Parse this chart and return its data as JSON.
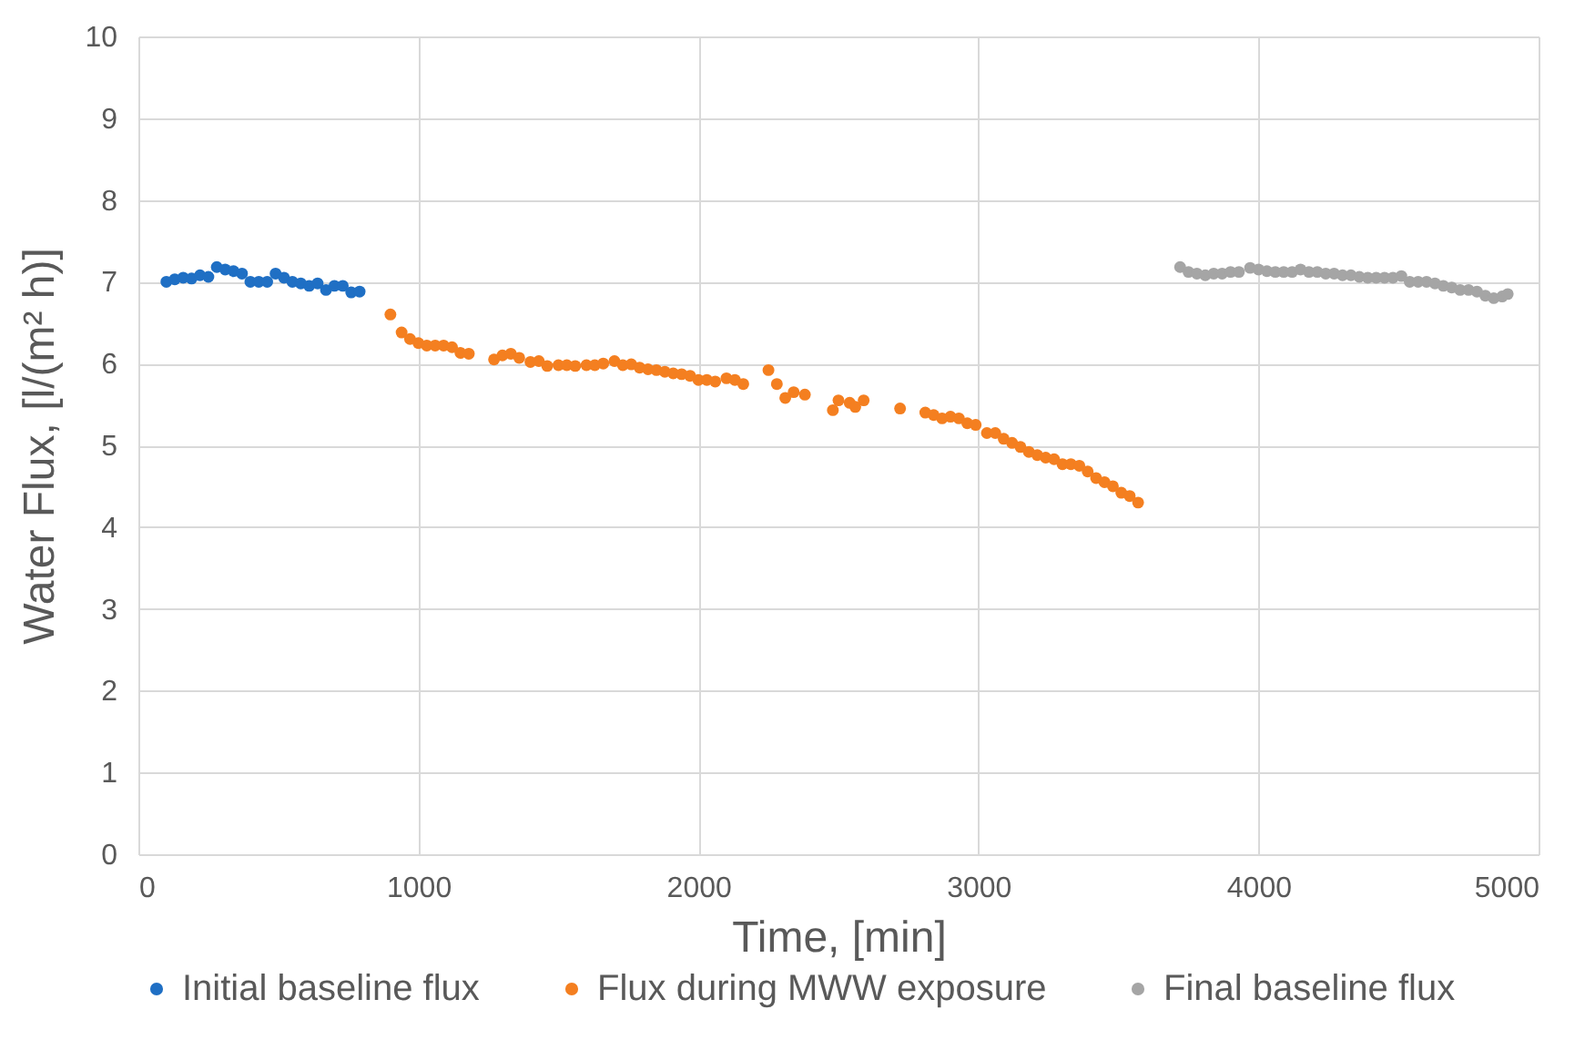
{
  "chart_data": {
    "type": "scatter",
    "xlabel": "Time, [min]",
    "ylabel": "Water Flux, [l/(m² h)]",
    "xlim": [
      0,
      5000
    ],
    "xticks": [
      0,
      1000,
      2000,
      3000,
      4000,
      5000
    ],
    "ylim": [
      0,
      10
    ],
    "yticks": [
      0,
      1,
      2,
      3,
      4,
      5,
      6,
      7,
      8,
      9,
      10
    ],
    "grid": true,
    "legend": "bottom",
    "marker": "circle",
    "series": [
      {
        "name": "Initial baseline flux",
        "color": "#1f6fc4",
        "x": [
          100,
          130,
          160,
          190,
          220,
          250,
          280,
          310,
          340,
          370,
          400,
          430,
          460,
          490,
          520,
          550,
          580,
          610,
          640,
          670,
          700,
          730,
          760,
          790
        ],
        "values": [
          7.0,
          7.03,
          7.05,
          7.04,
          7.08,
          7.06,
          7.18,
          7.15,
          7.13,
          7.1,
          7.0,
          7.0,
          7.0,
          7.1,
          7.05,
          7.0,
          6.98,
          6.95,
          6.98,
          6.9,
          6.95,
          6.95,
          6.87,
          6.88
        ]
      },
      {
        "name": "Flux during MWW exposure",
        "color": "#f47f20",
        "x": [
          900,
          940,
          970,
          1000,
          1030,
          1060,
          1090,
          1120,
          1150,
          1180,
          1270,
          1300,
          1330,
          1360,
          1400,
          1430,
          1460,
          1500,
          1530,
          1560,
          1600,
          1630,
          1660,
          1700,
          1730,
          1760,
          1790,
          1820,
          1850,
          1880,
          1910,
          1940,
          1970,
          2000,
          2030,
          2060,
          2100,
          2130,
          2160,
          2250,
          2280,
          2310,
          2340,
          2380,
          2480,
          2500,
          2540,
          2560,
          2590,
          2720,
          2810,
          2840,
          2870,
          2900,
          2930,
          2960,
          2990,
          3030,
          3060,
          3090,
          3120,
          3150,
          3180,
          3210,
          3240,
          3270,
          3300,
          3330,
          3360,
          3390,
          3420,
          3450,
          3480,
          3510,
          3540,
          3570
        ],
        "values": [
          6.6,
          6.38,
          6.3,
          6.25,
          6.22,
          6.22,
          6.22,
          6.2,
          6.13,
          6.12,
          6.05,
          6.1,
          6.12,
          6.07,
          6.02,
          6.03,
          5.97,
          5.98,
          5.98,
          5.97,
          5.98,
          5.98,
          6.0,
          6.03,
          5.98,
          5.99,
          5.95,
          5.93,
          5.92,
          5.9,
          5.88,
          5.87,
          5.85,
          5.8,
          5.8,
          5.78,
          5.82,
          5.8,
          5.75,
          5.92,
          5.75,
          5.58,
          5.65,
          5.62,
          5.43,
          5.55,
          5.52,
          5.47,
          5.55,
          5.45,
          5.4,
          5.37,
          5.33,
          5.35,
          5.33,
          5.27,
          5.25,
          5.15,
          5.15,
          5.08,
          5.03,
          4.98,
          4.92,
          4.88,
          4.85,
          4.83,
          4.77,
          4.77,
          4.75,
          4.68,
          4.6,
          4.55,
          4.5,
          4.42,
          4.38,
          4.3
        ]
      },
      {
        "name": "Final baseline flux",
        "color": "#a5a5a5",
        "x": [
          3720,
          3750,
          3780,
          3810,
          3840,
          3870,
          3900,
          3930,
          3970,
          4000,
          4030,
          4060,
          4090,
          4120,
          4150,
          4180,
          4210,
          4240,
          4270,
          4300,
          4330,
          4360,
          4390,
          4420,
          4450,
          4480,
          4510,
          4540,
          4570,
          4600,
          4630,
          4660,
          4690,
          4720,
          4750,
          4780,
          4810,
          4840,
          4870,
          4890
        ],
        "values": [
          7.18,
          7.12,
          7.1,
          7.08,
          7.1,
          7.1,
          7.12,
          7.12,
          7.17,
          7.15,
          7.13,
          7.12,
          7.12,
          7.12,
          7.15,
          7.12,
          7.12,
          7.1,
          7.1,
          7.08,
          7.08,
          7.06,
          7.05,
          7.05,
          7.05,
          7.05,
          7.07,
          7.0,
          7.0,
          7.0,
          6.98,
          6.95,
          6.93,
          6.9,
          6.9,
          6.88,
          6.83,
          6.8,
          6.82,
          6.85
        ]
      }
    ]
  }
}
